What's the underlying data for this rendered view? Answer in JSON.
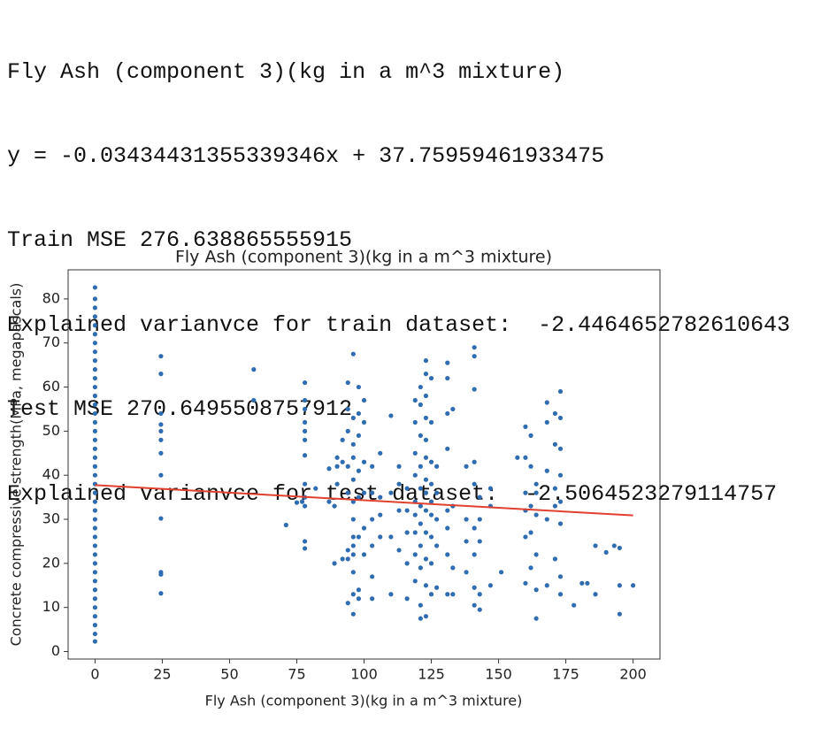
{
  "console": {
    "lines": [
      "Fly Ash (component 3)(kg in a m^3 mixture)",
      "y = -0.03434431355339346x + 37.75959461933475",
      "Train MSE 276.638865555915",
      "Explained varianvce for train dataset:  -2.4464652782610643",
      "Test MSE 270.6495508757912",
      "Explained varianvce for test dataset:  -2.5064523279114757"
    ]
  },
  "chart_data": {
    "type": "scatter",
    "title": "Fly Ash (component 3)(kg in a m^3 mixture)",
    "x_label": "Fly Ash (component 3)(kg in a m^3 mixture)",
    "y_label": "Concrete compressive strength(MPa, megapascals)",
    "xlim": [
      -10,
      210
    ],
    "ylim": [
      -1.7,
      86.6
    ],
    "xticks": [
      0,
      25,
      50,
      75,
      100,
      125,
      150,
      175,
      200
    ],
    "yticks": [
      0,
      10,
      20,
      30,
      40,
      50,
      60,
      70,
      80
    ],
    "points": {
      "color": "#2f6cb0",
      "x": [
        0,
        0,
        0,
        0,
        0,
        0,
        0,
        0,
        0,
        0,
        0,
        0,
        0,
        0,
        0,
        0,
        0,
        0,
        0,
        0,
        0,
        0,
        0,
        0,
        0,
        0,
        0,
        0,
        0,
        0,
        0,
        0,
        0,
        0,
        0,
        0,
        0,
        0,
        0,
        0,
        0,
        24.5,
        24.5,
        24.5,
        24.5,
        24.5,
        24.5,
        24.5,
        24.5,
        24.5,
        24.5,
        24.5,
        24.5,
        59,
        59,
        71,
        75,
        77,
        78,
        78,
        78,
        78,
        78,
        78,
        78,
        78,
        78,
        78,
        78,
        78,
        82,
        87,
        87,
        89,
        89,
        90,
        90,
        90,
        92,
        92,
        92,
        94,
        94,
        94,
        94,
        94,
        94,
        94,
        94,
        96,
        96,
        96,
        96,
        96,
        96,
        96,
        96,
        96,
        96,
        96,
        96,
        96,
        98,
        98,
        98,
        98,
        98,
        98,
        98,
        98,
        100,
        100,
        100,
        100,
        100,
        100,
        103,
        103,
        103,
        103,
        103,
        103,
        106,
        106,
        106,
        106,
        110,
        110,
        110,
        110,
        113,
        113,
        113,
        113,
        116,
        116,
        116,
        116,
        116,
        119,
        119,
        119,
        119,
        119,
        119,
        119,
        119,
        119,
        121,
        121,
        121,
        121,
        121,
        121,
        121,
        121,
        121,
        121,
        121,
        123,
        123,
        123,
        123,
        123,
        123,
        123,
        123,
        123,
        123,
        123,
        123,
        123,
        125,
        125,
        125,
        125,
        125,
        125,
        125,
        125,
        125,
        127,
        127,
        127,
        127,
        127,
        131,
        131,
        131,
        131,
        131,
        131,
        131,
        131,
        133,
        133,
        133,
        133,
        138,
        138,
        138,
        138,
        141,
        141,
        141,
        141,
        141,
        141,
        141,
        141,
        141,
        143,
        143,
        143,
        143,
        143,
        147,
        147,
        147,
        151,
        157,
        160,
        160,
        160,
        160,
        160,
        160,
        162,
        162,
        162,
        162,
        162,
        164,
        164,
        164,
        164,
        164,
        164,
        168,
        168,
        168,
        168,
        168,
        171,
        171,
        171,
        171,
        171,
        173,
        173,
        173,
        173,
        173,
        173,
        173,
        173,
        178,
        181,
        183,
        186,
        186,
        190,
        193,
        195,
        195,
        195,
        200
      ],
      "values": [
        2.3,
        4,
        6,
        8,
        10,
        12,
        14,
        16,
        18,
        20,
        22,
        24,
        26,
        28,
        30,
        32,
        34,
        36,
        38,
        40,
        42,
        44,
        46,
        48,
        50,
        52,
        54,
        56,
        58,
        60,
        62,
        64,
        66,
        68,
        70,
        72,
        74,
        76,
        78,
        80,
        82.6,
        13.2,
        17.5,
        18,
        30.2,
        40,
        45,
        48,
        50,
        51.5,
        54,
        63,
        67,
        57,
        64,
        28.7,
        33.8,
        34,
        23.4,
        25,
        33,
        35,
        38,
        44.5,
        48,
        50,
        52,
        55,
        57,
        61,
        37,
        34,
        41.5,
        20,
        33,
        38,
        42,
        44,
        21,
        43,
        48,
        11,
        21,
        23,
        36,
        42,
        50,
        55,
        61,
        8.5,
        13,
        18,
        22,
        24,
        26,
        30,
        34,
        39,
        44,
        47,
        53,
        67.5,
        12,
        14,
        26,
        35,
        41,
        49,
        54,
        60,
        22,
        28,
        36,
        43,
        52,
        57,
        12,
        17,
        24,
        30,
        36,
        42,
        26,
        31,
        35,
        45,
        13,
        26,
        36,
        53.5,
        23,
        32,
        38,
        42,
        12,
        20,
        27,
        32,
        37,
        16,
        22,
        27,
        31,
        34,
        40,
        45,
        52,
        57,
        7.5,
        10.5,
        19,
        24,
        29,
        33,
        37,
        42,
        49,
        56,
        60,
        8,
        15,
        21,
        27,
        32,
        36,
        39,
        44,
        48,
        53,
        58,
        63,
        66,
        13,
        20,
        26,
        31,
        34,
        38,
        43,
        52,
        62,
        14.5,
        24,
        30,
        36,
        42,
        13,
        22,
        28,
        32,
        46,
        54,
        62,
        65.5,
        13,
        19,
        33,
        55,
        18,
        25,
        30,
        42,
        10.5,
        14.5,
        22,
        28,
        38,
        43,
        59.5,
        67,
        69,
        9.5,
        13,
        25,
        30,
        35,
        15,
        33,
        37,
        18,
        44,
        15.5,
        26,
        32,
        36,
        44,
        51,
        19,
        27,
        33,
        42,
        49,
        7.5,
        14,
        22,
        31,
        36,
        38,
        15,
        30,
        41,
        52,
        56.5,
        21,
        33,
        37,
        47,
        54,
        13,
        17,
        29,
        34,
        40,
        46,
        53,
        59,
        10.5,
        15.5,
        15.5,
        13,
        24,
        22.5,
        24,
        8.5,
        15,
        23.5,
        15
      ]
    },
    "fit": {
      "color": "#e0402d",
      "x": [
        0,
        200
      ],
      "values": [
        37.76,
        30.89
      ]
    }
  }
}
